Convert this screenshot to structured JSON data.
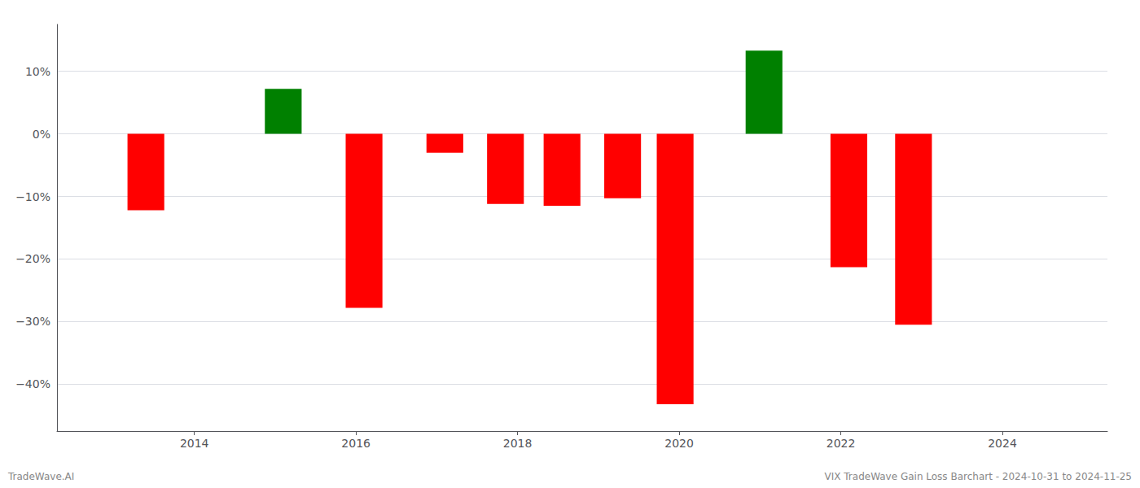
{
  "chart_data": {
    "type": "bar",
    "x": [
      2013.4,
      2015.1,
      2016.1,
      2017.1,
      2017.85,
      2018.55,
      2019.3,
      2019.95,
      2021.05,
      2022.1,
      2022.9
    ],
    "values": [
      -0.122,
      0.072,
      -0.278,
      -0.03,
      -0.112,
      -0.115,
      -0.103,
      -0.432,
      0.133,
      -0.213,
      -0.305
    ],
    "colors": [
      "#ff0000",
      "#008000",
      "#ff0000",
      "#ff0000",
      "#ff0000",
      "#ff0000",
      "#ff0000",
      "#ff0000",
      "#008000",
      "#ff0000",
      "#ff0000"
    ],
    "xlim": [
      2012.3,
      2025.3
    ],
    "xticks": [
      2014,
      2016,
      2018,
      2020,
      2022,
      2024
    ],
    "ylim": [
      -0.475,
      0.175
    ],
    "yticks": [
      {
        "value": 0.1,
        "label": "10%"
      },
      {
        "value": 0.0,
        "label": "0%"
      },
      {
        "value": -0.1,
        "label": "−10%"
      },
      {
        "value": -0.2,
        "label": "−20%"
      },
      {
        "value": -0.3,
        "label": "−30%"
      },
      {
        "value": -0.4,
        "label": "−40%"
      }
    ],
    "grid": true,
    "annotations": [
      "TradeWave.AI",
      "VIX TradeWave Gain Loss Barchart - 2024-10-31 to 2024-11-25"
    ]
  }
}
